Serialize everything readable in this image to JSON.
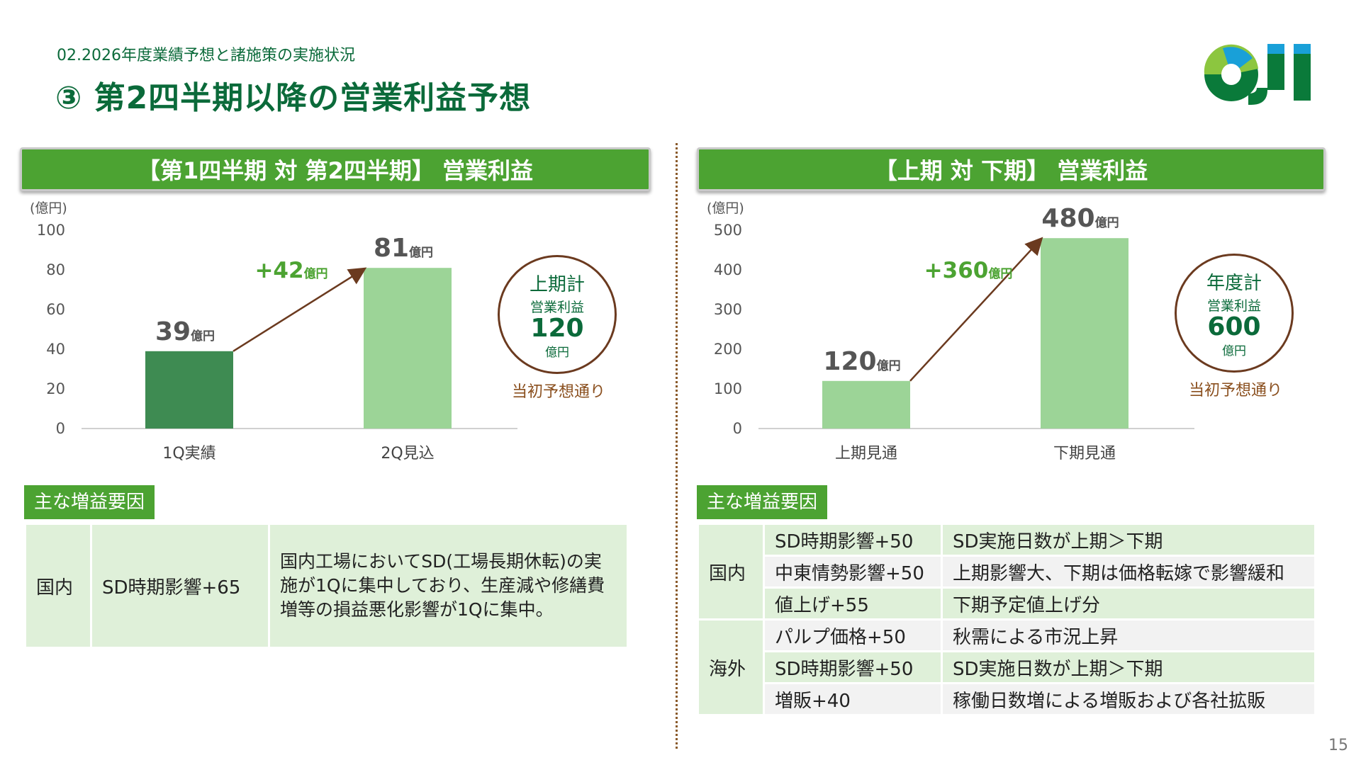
{
  "header": {
    "section": "02.2026年度業績予想と諸施策の実施状況",
    "title": "③ 第2四半期以降の営業利益予想",
    "logo_text": "OJI"
  },
  "left": {
    "header": "【第1四半期 対 第2四半期】 営業利益",
    "circle": {
      "title": "上期計",
      "sub": "営業利益",
      "value": "120",
      "unit": "億円"
    },
    "note": "当初予想通り",
    "factors_label": "主な増益要因",
    "table": {
      "region": "国内",
      "item": "SD時期影響+65",
      "desc": "国内工場においてSD(工場長期休転)の実施が1Qに集中しており、生産減や修繕費増等の損益悪化影響が1Qに集中。"
    }
  },
  "right": {
    "header": "【上期 対 下期】 営業利益",
    "circle": {
      "title": "年度計",
      "sub": "営業利益",
      "value": "600",
      "unit": "億円"
    },
    "note": "当初予想通り",
    "factors_label": "主な増益要因",
    "domestic_label": "国内",
    "overseas_label": "海外",
    "domestic": [
      {
        "item": "SD時期影響+50",
        "desc": "SD実施日数が上期＞下期"
      },
      {
        "item": "中東情勢影響+50",
        "desc": "上期影響大、下期は価格転嫁で影響緩和"
      },
      {
        "item": "値上げ+55",
        "desc": "下期予定値上げ分"
      }
    ],
    "overseas": [
      {
        "item": "パルプ価格+50",
        "desc": "秋需による市況上昇"
      },
      {
        "item": "SD時期影響+50",
        "desc": "SD実施日数が上期＞下期"
      },
      {
        "item": "増販+40",
        "desc": "稼働日数増による増販および各社拡販"
      }
    ]
  },
  "chart_data": [
    {
      "type": "bar",
      "ylabel": "(億円)",
      "ylim": [
        0,
        100
      ],
      "yticks": [
        0,
        20,
        40,
        60,
        80,
        100
      ],
      "categories": [
        "1Q実績",
        "2Q見込"
      ],
      "values": [
        39,
        81
      ],
      "data_labels": [
        "39",
        "81"
      ],
      "unit_label": "億円",
      "bar_colors": [
        "#3e8b52",
        "#9cd497"
      ],
      "annotation": "+42",
      "annotation_unit": "億円"
    },
    {
      "type": "bar",
      "ylabel": "(億円)",
      "ylim": [
        0,
        500
      ],
      "yticks": [
        0,
        100,
        200,
        300,
        400,
        500
      ],
      "categories": [
        "上期見通",
        "下期見通"
      ],
      "values": [
        120,
        480
      ],
      "data_labels": [
        "120",
        "480"
      ],
      "unit_label": "億円",
      "bar_colors": [
        "#9cd497",
        "#9cd497"
      ],
      "annotation": "+360",
      "annotation_unit": "億円"
    }
  ],
  "page_number": "15",
  "colors": {
    "green_dark": "#0b6a3a",
    "green_bar": "#4ca332",
    "brown": "#6b3a1f"
  }
}
